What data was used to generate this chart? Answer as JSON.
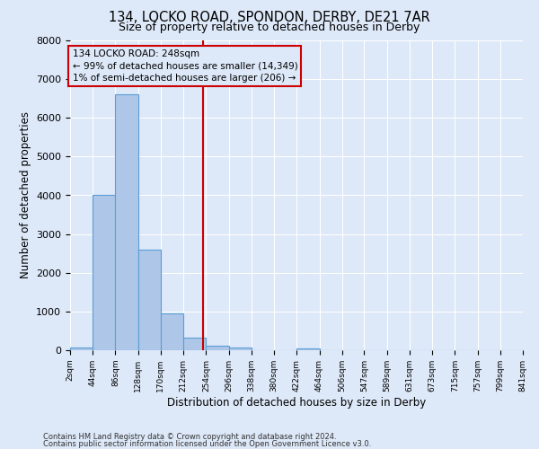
{
  "title": "134, LOCKO ROAD, SPONDON, DERBY, DE21 7AR",
  "subtitle": "Size of property relative to detached houses in Derby",
  "xlabel": "Distribution of detached houses by size in Derby",
  "ylabel": "Number of detached properties",
  "bin_edges": [
    2,
    44,
    86,
    128,
    170,
    212,
    254,
    296,
    338,
    380,
    422,
    464,
    506,
    547,
    589,
    631,
    673,
    715,
    757,
    799,
    841
  ],
  "bar_heights": [
    70,
    4000,
    6600,
    2600,
    950,
    320,
    110,
    60,
    0,
    0,
    40,
    0,
    0,
    0,
    0,
    0,
    0,
    0,
    0,
    0
  ],
  "bar_color": "#aec6e8",
  "bar_edge_color": "#5a9fd4",
  "vline_x": 248,
  "vline_color": "#cc0000",
  "ylim": [
    0,
    8000
  ],
  "yticks": [
    0,
    1000,
    2000,
    3000,
    4000,
    5000,
    6000,
    7000,
    8000
  ],
  "annotation_line1": "134 LOCKO ROAD: 248sqm",
  "annotation_line2": "← 99% of detached houses are smaller (14,349)",
  "annotation_line3": "1% of semi-detached houses are larger (206) →",
  "annotation_box_color": "#cc0000",
  "background_color": "#dde8f8",
  "grid_color": "#ffffff",
  "footnote_line1": "Contains HM Land Registry data © Crown copyright and database right 2024.",
  "footnote_line2": "Contains public sector information licensed under the Open Government Licence v3.0.",
  "tick_labels": [
    "2sqm",
    "44sqm",
    "86sqm",
    "128sqm",
    "170sqm",
    "212sqm",
    "254sqm",
    "296sqm",
    "338sqm",
    "380sqm",
    "422sqm",
    "464sqm",
    "506sqm",
    "547sqm",
    "589sqm",
    "631sqm",
    "673sqm",
    "715sqm",
    "757sqm",
    "799sqm",
    "841sqm"
  ]
}
